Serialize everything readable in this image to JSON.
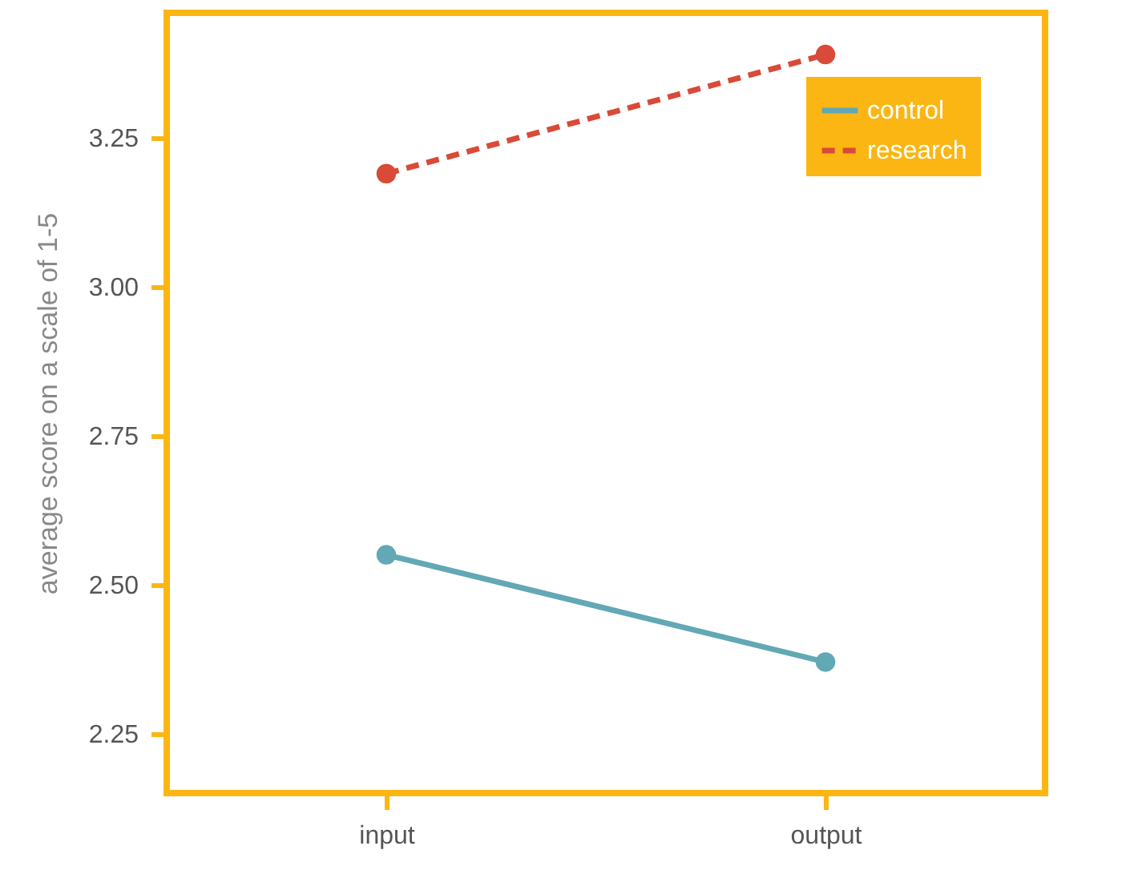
{
  "chart_data": {
    "type": "line",
    "ylabel": "average score on a scale of 1-5",
    "categories": [
      "input",
      "output"
    ],
    "series": [
      {
        "name": "control",
        "color": "#62a8b5",
        "values": [
          2.55,
          2.37
        ],
        "line_style": "solid"
      },
      {
        "name": "research",
        "color": "#d94a38",
        "values": [
          3.19,
          3.39
        ],
        "line_style": "dashed"
      }
    ],
    "ylim": [
      2.15,
      3.46
    ],
    "yticks": [
      {
        "value": 2.25,
        "label": "2.25"
      },
      {
        "value": 2.5,
        "label": "2.50"
      },
      {
        "value": 2.75,
        "label": "2.75"
      },
      {
        "value": 3.0,
        "label": "3.00"
      },
      {
        "value": 3.25,
        "label": "3.25"
      }
    ],
    "grid": false,
    "legend": "top right",
    "marker": "circle"
  }
}
